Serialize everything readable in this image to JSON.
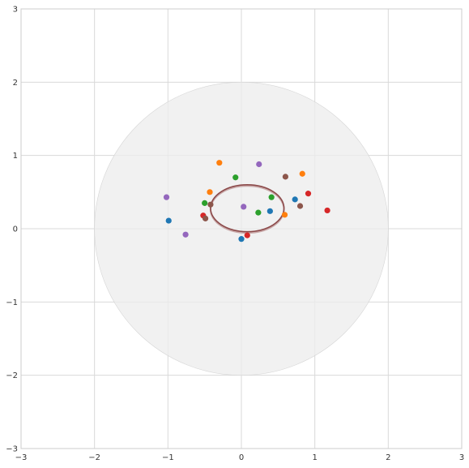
{
  "chart_data": {
    "type": "scatter",
    "title": "",
    "xlabel": "",
    "ylabel": "",
    "xlim": [
      -3,
      3
    ],
    "ylim": [
      -3,
      3
    ],
    "xticks": [
      -3,
      -2,
      -1,
      0,
      1,
      2,
      3
    ],
    "yticks": [
      -3,
      -2,
      -1,
      0,
      1,
      2,
      3
    ],
    "xtick_labels": [
      "−3",
      "−2",
      "−1",
      "0",
      "1",
      "2",
      "3"
    ],
    "ytick_labels": [
      "−3",
      "−2",
      "−1",
      "0",
      "1",
      "2",
      "3"
    ],
    "grid": true,
    "background_circle": {
      "center": [
        0,
        0
      ],
      "radius": 2,
      "color": "#ececec"
    },
    "ellipse": {
      "center": [
        0.08,
        0.28
      ],
      "rx": 0.5,
      "ry": 0.32,
      "color": "#8c4a4a"
    },
    "points": [
      {
        "x": -0.3,
        "y": 0.9,
        "color": "#ff7f0e"
      },
      {
        "x": 0.24,
        "y": 0.88,
        "color": "#9467bd"
      },
      {
        "x": -0.08,
        "y": 0.7,
        "color": "#2ca02c"
      },
      {
        "x": 0.6,
        "y": 0.71,
        "color": "#8c564b"
      },
      {
        "x": 0.83,
        "y": 0.75,
        "color": "#ff7f0e"
      },
      {
        "x": -0.43,
        "y": 0.5,
        "color": "#ff7f0e"
      },
      {
        "x": -1.02,
        "y": 0.43,
        "color": "#9467bd"
      },
      {
        "x": -0.5,
        "y": 0.35,
        "color": "#2ca02c"
      },
      {
        "x": -0.42,
        "y": 0.33,
        "color": "#8c564b"
      },
      {
        "x": 0.41,
        "y": 0.43,
        "color": "#2ca02c"
      },
      {
        "x": 0.73,
        "y": 0.4,
        "color": "#1f77b4"
      },
      {
        "x": 0.91,
        "y": 0.48,
        "color": "#d62728"
      },
      {
        "x": 0.8,
        "y": 0.31,
        "color": "#8c564b"
      },
      {
        "x": 1.17,
        "y": 0.25,
        "color": "#d62728"
      },
      {
        "x": 0.03,
        "y": 0.3,
        "color": "#9467bd"
      },
      {
        "x": 0.23,
        "y": 0.22,
        "color": "#2ca02c"
      },
      {
        "x": 0.39,
        "y": 0.24,
        "color": "#1f77b4"
      },
      {
        "x": 0.59,
        "y": 0.19,
        "color": "#ff7f0e"
      },
      {
        "x": -0.52,
        "y": 0.18,
        "color": "#d62728"
      },
      {
        "x": -0.49,
        "y": 0.14,
        "color": "#8c564b"
      },
      {
        "x": -0.99,
        "y": 0.11,
        "color": "#1f77b4"
      },
      {
        "x": -0.76,
        "y": -0.08,
        "color": "#9467bd"
      },
      {
        "x": 0.08,
        "y": -0.09,
        "color": "#d62728"
      },
      {
        "x": 0.0,
        "y": -0.14,
        "color": "#1f77b4"
      }
    ]
  }
}
